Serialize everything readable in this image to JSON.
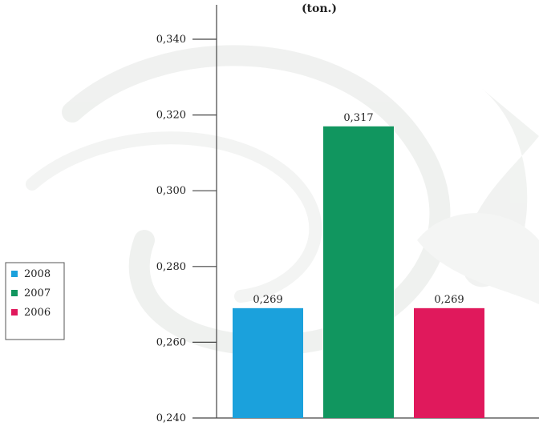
{
  "chart_data": {
    "type": "bar",
    "title": "(ton.)",
    "xlabel": "",
    "ylabel": "",
    "categories": [
      "2008",
      "2007",
      "2006"
    ],
    "values": [
      0.269,
      0.317,
      0.269
    ],
    "value_labels": [
      "0,269",
      "0,317",
      "0,269"
    ],
    "colors": [
      "#1ba1dc",
      "#11965f",
      "#e0195c"
    ],
    "ylim": [
      0.24,
      0.34
    ],
    "yticks": [
      0.24,
      0.26,
      0.28,
      0.3,
      0.32,
      0.34
    ],
    "ytick_labels": [
      "0,240",
      "0,260",
      "0,280",
      "0,300",
      "0,320",
      "0,340"
    ],
    "grid": false,
    "legend": {
      "placement": "left",
      "entries": [
        "2008",
        "2007",
        "2006"
      ]
    }
  }
}
